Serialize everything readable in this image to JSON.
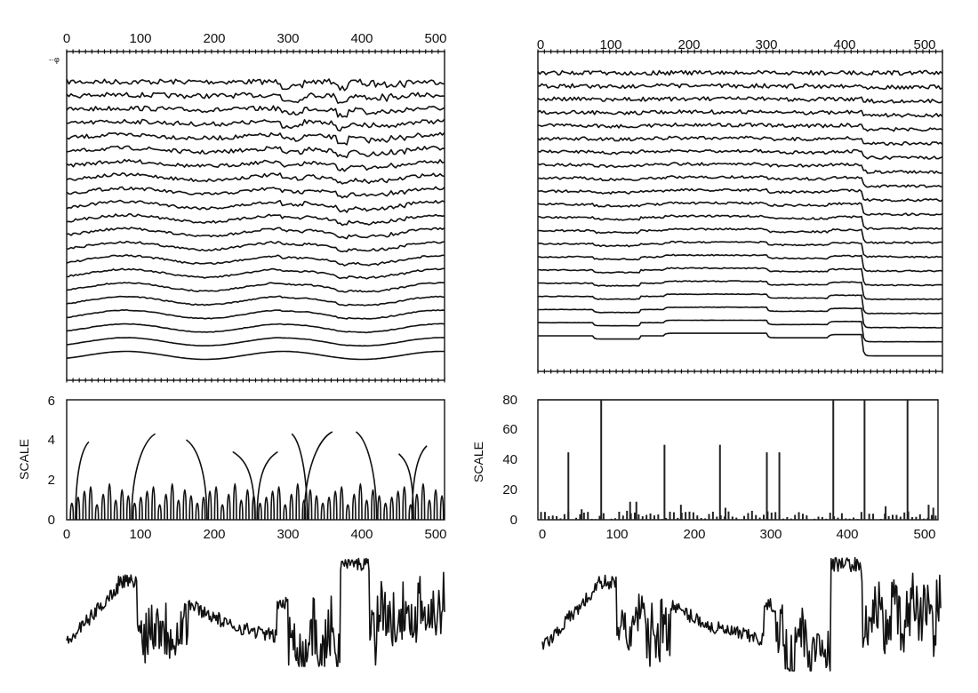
{
  "colors": {
    "ink": "#111111",
    "background": "#ffffff"
  },
  "chart_data": [
    {
      "id": "left-stack",
      "type": "line",
      "description_role": "stacked multiscale smoothed signal traces",
      "x_range": [
        0,
        512
      ],
      "x_ticks": [
        0,
        100,
        200,
        300,
        400,
        500
      ],
      "x_tick_labels": [
        "0",
        "100",
        "200",
        "300",
        "400",
        "500"
      ],
      "n_traces": 21,
      "corner_mark": "-·φ"
    },
    {
      "id": "right-stack",
      "type": "line",
      "description_role": "stacked multiscale piecewise-constant traces",
      "x_range": [
        0,
        512
      ],
      "x_ticks": [
        0,
        100,
        200,
        300,
        400,
        500
      ],
      "x_tick_labels": [
        "0",
        "100",
        "200",
        "300",
        "400",
        "500"
      ],
      "n_traces": 21
    },
    {
      "id": "left-scale",
      "type": "line",
      "ylabel": "SCALE",
      "ylim": [
        0,
        6
      ],
      "y_ticks": [
        0,
        2,
        4,
        6
      ],
      "y_tick_labels": [
        "0",
        "2",
        "4",
        "6"
      ],
      "x_range": [
        0,
        512
      ],
      "x_ticks": [
        0,
        100,
        200,
        300,
        400,
        500
      ],
      "x_tick_labels": [
        "0",
        "100",
        "200",
        "300",
        "400",
        "500"
      ],
      "curves": [
        {
          "x0": 30,
          "x1": 12,
          "ytop": 3.9
        },
        {
          "x0": 120,
          "x1": 88,
          "ytop": 4.3
        },
        {
          "x0": 162,
          "x1": 190,
          "ytop": 4.0
        },
        {
          "x0": 225,
          "x1": 255,
          "ytop": 3.4
        },
        {
          "x0": 286,
          "x1": 258,
          "ytop": 3.4
        },
        {
          "x0": 305,
          "x1": 326,
          "ytop": 4.3
        },
        {
          "x0": 360,
          "x1": 322,
          "ytop": 4.4
        },
        {
          "x0": 392,
          "x1": 420,
          "ytop": 4.4
        },
        {
          "x0": 450,
          "x1": 470,
          "ytop": 3.3
        },
        {
          "x0": 488,
          "x1": 468,
          "ytop": 3.7
        }
      ],
      "minor_curve_heights": [
        1.1,
        1.5,
        1.9,
        2.2,
        1.0,
        1.7,
        2.4,
        1.3,
        2.0,
        1.6
      ]
    },
    {
      "id": "right-scale",
      "type": "bar",
      "ylabel": "SCALE",
      "ylim": [
        0,
        80
      ],
      "y_ticks": [
        0,
        20,
        40,
        60,
        80
      ],
      "y_tick_labels": [
        "0",
        "20",
        "40",
        "60",
        "80"
      ],
      "x_range": [
        0,
        512
      ],
      "x_ticks": [
        0,
        100,
        200,
        300,
        400,
        500
      ],
      "x_tick_labels": [
        "0",
        "100",
        "200",
        "300",
        "400",
        "500"
      ],
      "bars": [
        {
          "x": 39,
          "value": 45
        },
        {
          "x": 81,
          "value": 80
        },
        {
          "x": 162,
          "value": 50
        },
        {
          "x": 233,
          "value": 50
        },
        {
          "x": 293,
          "value": 45
        },
        {
          "x": 309,
          "value": 45
        },
        {
          "x": 378,
          "value": 80
        },
        {
          "x": 418,
          "value": 80
        },
        {
          "x": 473,
          "value": 80
        },
        {
          "x": 118,
          "value": 12
        },
        {
          "x": 126,
          "value": 12
        },
        {
          "x": 183,
          "value": 10
        },
        {
          "x": 56,
          "value": 7
        },
        {
          "x": 240,
          "value": 8
        },
        {
          "x": 445,
          "value": 9
        },
        {
          "x": 500,
          "value": 10
        },
        {
          "x": 506,
          "value": 8
        }
      ],
      "noise_bar_max": 6
    },
    {
      "id": "left-signal",
      "type": "line",
      "description_role": "original noisy signal",
      "x_range": [
        0,
        512
      ]
    },
    {
      "id": "right-signal",
      "type": "line",
      "description_role": "reconstructed signal",
      "x_range": [
        0,
        512
      ]
    }
  ]
}
